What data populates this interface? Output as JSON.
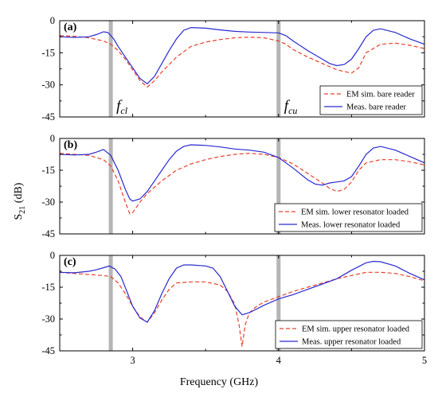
{
  "figure": {
    "xlabel": "Frequency (GHz)",
    "ylabel": "S",
    "ylabel_sub": "21",
    "ylabel_unit": " (dB)"
  },
  "markers": {
    "lower": {
      "f": "f",
      "sub": "cl"
    },
    "upper": {
      "f": "f",
      "sub": "cu"
    }
  },
  "colors": {
    "sim": "#e8402a",
    "meas": "#2a2ad0",
    "band": "#b5b5b5",
    "axis": "#000000"
  },
  "chart_data": [
    {
      "type": "line",
      "panel_label": "(a)",
      "xlim": [
        2.5,
        5
      ],
      "ylim": [
        -45,
        0
      ],
      "xticks": [
        3,
        4,
        5
      ],
      "yticks": [
        -45,
        -30,
        -15,
        0
      ],
      "ytick_labels": [
        "-45",
        "-30",
        "-15",
        "0"
      ],
      "bands": [
        2.85,
        4.0
      ],
      "legend_position": "bottom-right",
      "series": [
        {
          "name": "EM sim. bare reader",
          "style": "dashed",
          "color": "#e8402a",
          "x": [
            2.5,
            2.6,
            2.7,
            2.8,
            2.85,
            2.9,
            2.95,
            3.0,
            3.05,
            3.1,
            3.15,
            3.2,
            3.3,
            3.4,
            3.5,
            3.6,
            3.7,
            3.8,
            3.9,
            4.0,
            4.05,
            4.1,
            4.2,
            4.3,
            4.4,
            4.5,
            4.55,
            4.6,
            4.7,
            4.8,
            4.9,
            5.0
          ],
          "y": [
            -7,
            -7.3,
            -8,
            -9.5,
            -11,
            -14,
            -18,
            -23,
            -28,
            -31,
            -28,
            -24,
            -17,
            -12,
            -10,
            -8.8,
            -8,
            -7.7,
            -8,
            -9.5,
            -11,
            -13.5,
            -17,
            -20,
            -23,
            -24.5,
            -22,
            -15,
            -11,
            -10.5,
            -11.5,
            -13
          ]
        },
        {
          "name": "Meas. bare reader",
          "style": "solid",
          "color": "#2a2ad0",
          "x": [
            2.5,
            2.6,
            2.7,
            2.75,
            2.8,
            2.83,
            2.87,
            2.9,
            2.95,
            3.0,
            3.05,
            3.1,
            3.15,
            3.2,
            3.25,
            3.3,
            3.35,
            3.4,
            3.5,
            3.6,
            3.7,
            3.8,
            3.9,
            4.0,
            4.05,
            4.1,
            4.2,
            4.3,
            4.35,
            4.4,
            4.45,
            4.5,
            4.55,
            4.6,
            4.65,
            4.7,
            4.8,
            4.9,
            5.0
          ],
          "y": [
            -7.5,
            -7.8,
            -7.5,
            -6.5,
            -5.2,
            -5.5,
            -8.5,
            -12,
            -17,
            -22,
            -27,
            -29.5,
            -26,
            -20,
            -14,
            -8.5,
            -4.5,
            -3.2,
            -3.5,
            -4.3,
            -5,
            -5.3,
            -5.5,
            -5.7,
            -7,
            -9.5,
            -14,
            -18,
            -20,
            -21,
            -20.5,
            -18,
            -13,
            -7.5,
            -4.5,
            -3.8,
            -5.5,
            -8.5,
            -11
          ]
        }
      ]
    },
    {
      "type": "line",
      "panel_label": "(b)",
      "xlim": [
        2.5,
        5
      ],
      "ylim": [
        -45,
        0
      ],
      "xticks": [
        3,
        4,
        5
      ],
      "yticks": [
        -45,
        -30,
        -15,
        0
      ],
      "ytick_labels": [
        "-45",
        "-30",
        "-15",
        "0"
      ],
      "bands": [
        2.85,
        4.0
      ],
      "legend_position": "bottom-right",
      "series": [
        {
          "name": "EM sim. lower resonator loaded",
          "style": "dashed",
          "color": "#e8402a",
          "x": [
            2.5,
            2.6,
            2.7,
            2.8,
            2.85,
            2.9,
            2.95,
            2.98,
            3.0,
            3.05,
            3.1,
            3.2,
            3.3,
            3.4,
            3.5,
            3.6,
            3.7,
            3.8,
            3.9,
            4.0,
            4.1,
            4.2,
            4.3,
            4.35,
            4.4,
            4.45,
            4.5,
            4.55,
            4.6,
            4.7,
            4.8,
            4.9,
            5.0
          ],
          "y": [
            -7,
            -7.5,
            -8,
            -10,
            -13,
            -20,
            -30,
            -35.5,
            -35,
            -30,
            -26,
            -20,
            -15,
            -12,
            -10,
            -8.5,
            -7.5,
            -7,
            -7.5,
            -9,
            -12,
            -16.5,
            -21,
            -23.5,
            -25,
            -24,
            -20.5,
            -15,
            -11.5,
            -10,
            -10,
            -11,
            -12.5
          ]
        },
        {
          "name": "Meas. lower resonator loaded",
          "style": "solid",
          "color": "#2a2ad0",
          "x": [
            2.5,
            2.6,
            2.7,
            2.75,
            2.8,
            2.85,
            2.9,
            2.95,
            2.98,
            3.0,
            3.05,
            3.1,
            3.15,
            3.2,
            3.25,
            3.3,
            3.35,
            3.4,
            3.5,
            3.6,
            3.7,
            3.8,
            3.9,
            4.0,
            4.1,
            4.2,
            4.25,
            4.3,
            4.35,
            4.4,
            4.45,
            4.5,
            4.55,
            4.6,
            4.65,
            4.7,
            4.8,
            4.9,
            5.0
          ],
          "y": [
            -7.5,
            -7.8,
            -7.5,
            -6.5,
            -5.2,
            -8,
            -15,
            -24,
            -28.5,
            -29.5,
            -28.5,
            -25,
            -20,
            -15,
            -10,
            -6,
            -3.8,
            -3,
            -3.3,
            -4,
            -5,
            -5.5,
            -6.5,
            -9,
            -14,
            -19.5,
            -21.5,
            -22,
            -21,
            -20.5,
            -20,
            -18,
            -13,
            -7.5,
            -4.5,
            -3.8,
            -5.5,
            -8.5,
            -11.5
          ]
        }
      ]
    },
    {
      "type": "line",
      "panel_label": "(c)",
      "xlim": [
        2.5,
        5
      ],
      "ylim": [
        -45,
        0
      ],
      "xticks": [
        3,
        4,
        5
      ],
      "yticks": [
        -45,
        -30,
        -15,
        0
      ],
      "ytick_labels": [
        "-45",
        "-30",
        "-15",
        "0"
      ],
      "xtick_labels": [
        "3",
        "4",
        "5"
      ],
      "bands": [
        2.85,
        4.0
      ],
      "legend_position": "bottom-right",
      "series": [
        {
          "name": "EM sim. upper resonator loaded",
          "style": "dashed",
          "color": "#e8402a",
          "x": [
            2.5,
            2.6,
            2.7,
            2.8,
            2.85,
            2.9,
            2.95,
            3.0,
            3.05,
            3.1,
            3.15,
            3.2,
            3.25,
            3.3,
            3.4,
            3.5,
            3.6,
            3.65,
            3.7,
            3.73,
            3.75,
            3.77,
            3.8,
            3.85,
            3.9,
            4.0,
            4.1,
            4.2,
            4.3,
            4.4,
            4.5,
            4.6,
            4.7,
            4.8,
            4.9,
            5.0
          ],
          "y": [
            -8,
            -8.5,
            -9,
            -9.5,
            -10,
            -13,
            -18,
            -24,
            -29,
            -31.5,
            -27,
            -21,
            -16,
            -13,
            -12.5,
            -12.5,
            -14,
            -17,
            -23,
            -33,
            -43,
            -33,
            -27,
            -24,
            -22,
            -19.5,
            -17,
            -15,
            -13,
            -11,
            -9.5,
            -8,
            -8,
            -8.5,
            -10,
            -12
          ]
        },
        {
          "name": "Meas. upper resonator loaded",
          "style": "solid",
          "color": "#2a2ad0",
          "x": [
            2.5,
            2.6,
            2.7,
            2.75,
            2.8,
            2.84,
            2.88,
            2.92,
            2.96,
            3.0,
            3.05,
            3.1,
            3.15,
            3.2,
            3.25,
            3.3,
            3.35,
            3.4,
            3.5,
            3.55,
            3.6,
            3.65,
            3.7,
            3.75,
            3.8,
            3.9,
            4.0,
            4.1,
            4.2,
            4.3,
            4.4,
            4.5,
            4.6,
            4.65,
            4.7,
            4.8,
            4.9,
            5.0
          ],
          "y": [
            -8,
            -8.2,
            -7.5,
            -6.8,
            -5.8,
            -5,
            -6.5,
            -10,
            -17,
            -24,
            -29.5,
            -31.5,
            -26,
            -18,
            -11,
            -6,
            -4.5,
            -4.5,
            -5,
            -6,
            -10,
            -17,
            -24,
            -28,
            -27,
            -23.5,
            -20.5,
            -18.5,
            -16,
            -13.5,
            -11,
            -7,
            -3.5,
            -2.8,
            -3,
            -5,
            -8.5,
            -11.5
          ]
        }
      ]
    }
  ]
}
